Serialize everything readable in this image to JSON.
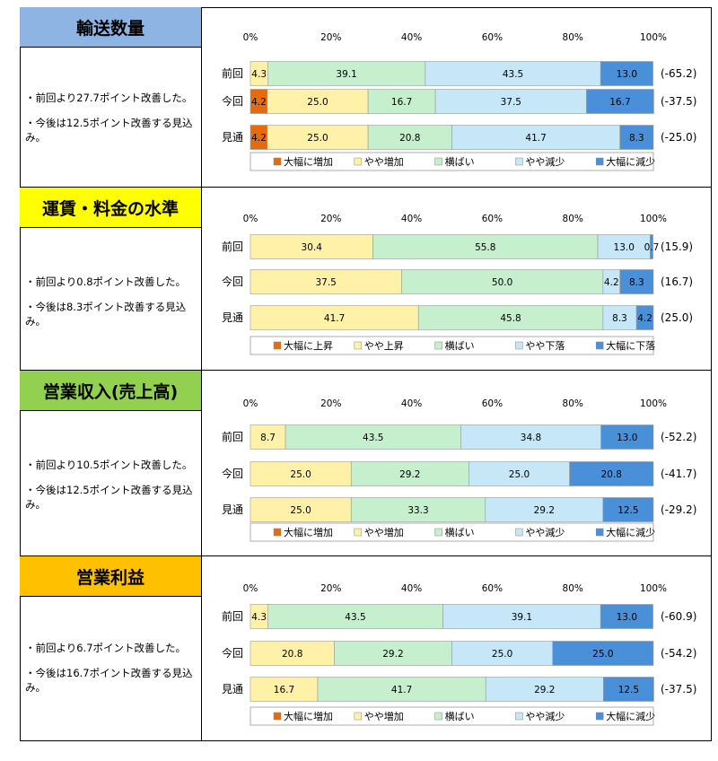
{
  "sections": [
    {
      "title": "輸送数量",
      "title_bg": "#8EB4E3",
      "notes": [
        "・前回より27.7ポイント改善した。",
        "・今後は12.5ポイント改善する見込み。"
      ]
    },
    {
      "title": "運賃・料金の水準",
      "title_bg": "#FFFF00",
      "notes": [
        "・前回より0.8ポイント改善した。",
        "・今後は8.3ポイント改善する見込み。"
      ]
    },
    {
      "title": "営業収入(売上高)",
      "title_bg": "#92D050",
      "notes": [
        "・前回より10.5ポイント改善した。",
        "・今後は12.5ポイント改善する見込み。"
      ]
    },
    {
      "title": "営業利益",
      "title_bg": "#FFC000",
      "notes": [
        "・前回より6.7ポイント改善した。",
        "・今後は16.7ポイント改善する見込み。"
      ]
    }
  ],
  "chart_data": [
    {
      "type": "bar",
      "stacked": true,
      "orientation": "horizontal",
      "categories": [
        "前回",
        "今回",
        "見通"
      ],
      "xticks": [
        "0%",
        "20%",
        "40%",
        "60%",
        "80%",
        "100%"
      ],
      "xlim": [
        0,
        100
      ],
      "series": [
        {
          "name": "大幅に増加",
          "color": "#E46C0A",
          "values": [
            0,
            4.2,
            4.2
          ],
          "labels": [
            "",
            "4.2",
            "4.2"
          ]
        },
        {
          "name": "やや増加",
          "color": "#FFF2A8",
          "values": [
            4.3,
            25.0,
            25.0
          ],
          "labels": [
            "4.3",
            "25.0",
            "25.0"
          ]
        },
        {
          "name": "横ばい",
          "color": "#C6EFCE",
          "values": [
            39.1,
            16.7,
            20.8
          ],
          "labels": [
            "39.1",
            "16.7",
            "20.8"
          ]
        },
        {
          "name": "やや減少",
          "color": "#C5E7F7",
          "values": [
            43.5,
            37.5,
            41.7
          ],
          "labels": [
            "43.5",
            "37.5",
            "41.7"
          ]
        },
        {
          "name": "大幅に減少",
          "color": "#4A90D9",
          "values": [
            13.0,
            16.7,
            8.3
          ],
          "labels": [
            "13.0",
            "16.7",
            "8.3"
          ]
        }
      ],
      "di": [
        "(-65.2)",
        "(-37.5)",
        "(-25.0)"
      ]
    },
    {
      "type": "bar",
      "stacked": true,
      "orientation": "horizontal",
      "categories": [
        "前回",
        "今回",
        "見通"
      ],
      "xticks": [
        "0%",
        "20%",
        "40%",
        "60%",
        "80%",
        "100%"
      ],
      "xlim": [
        0,
        100
      ],
      "series": [
        {
          "name": "大幅に上昇",
          "color": "#E46C0A",
          "values": [
            0,
            0,
            0
          ],
          "labels": [
            "",
            "",
            ""
          ]
        },
        {
          "name": "やや上昇",
          "color": "#FFF2A8",
          "values": [
            30.4,
            37.5,
            41.7
          ],
          "labels": [
            "30.4",
            "37.5",
            "41.7"
          ]
        },
        {
          "name": "横ばい",
          "color": "#C6EFCE",
          "values": [
            55.8,
            50.0,
            45.8
          ],
          "labels": [
            "55.8",
            "50.0",
            "45.8"
          ]
        },
        {
          "name": "やや下落",
          "color": "#C5E7F7",
          "values": [
            13.0,
            4.2,
            8.3
          ],
          "labels": [
            "13.0",
            "4.2",
            "8.3"
          ]
        },
        {
          "name": "大幅に下落",
          "color": "#4A90D9",
          "values": [
            0.7,
            8.3,
            4.2
          ],
          "labels": [
            "0.7",
            "8.3",
            "4.2"
          ]
        }
      ],
      "di": [
        "(15.9)",
        "(16.7)",
        "(25.0)"
      ]
    },
    {
      "type": "bar",
      "stacked": true,
      "orientation": "horizontal",
      "categories": [
        "前回",
        "今回",
        "見通"
      ],
      "xticks": [
        "0%",
        "20%",
        "40%",
        "60%",
        "80%",
        "100%"
      ],
      "xlim": [
        0,
        100
      ],
      "series": [
        {
          "name": "大幅に増加",
          "color": "#E46C0A",
          "values": [
            0,
            0,
            0
          ],
          "labels": [
            "",
            "",
            ""
          ]
        },
        {
          "name": "やや増加",
          "color": "#FFF2A8",
          "values": [
            8.7,
            25.0,
            25.0
          ],
          "labels": [
            "8.7",
            "25.0",
            "25.0"
          ]
        },
        {
          "name": "横ばい",
          "color": "#C6EFCE",
          "values": [
            43.5,
            29.2,
            33.3
          ],
          "labels": [
            "43.5",
            "29.2",
            "33.3"
          ]
        },
        {
          "name": "やや減少",
          "color": "#C5E7F7",
          "values": [
            34.8,
            25.0,
            29.2
          ],
          "labels": [
            "34.8",
            "25.0",
            "29.2"
          ]
        },
        {
          "name": "大幅に減少",
          "color": "#4A90D9",
          "values": [
            13.0,
            20.8,
            12.5
          ],
          "labels": [
            "13.0",
            "20.8",
            "12.5"
          ]
        }
      ],
      "di": [
        "(-52.2)",
        "(-41.7)",
        "(-29.2)"
      ]
    },
    {
      "type": "bar",
      "stacked": true,
      "orientation": "horizontal",
      "categories": [
        "前回",
        "今回",
        "見通"
      ],
      "xticks": [
        "0%",
        "20%",
        "40%",
        "60%",
        "80%",
        "100%"
      ],
      "xlim": [
        0,
        100
      ],
      "series": [
        {
          "name": "大幅に増加",
          "color": "#E46C0A",
          "values": [
            0,
            0,
            0
          ],
          "labels": [
            "",
            "",
            ""
          ]
        },
        {
          "name": "やや増加",
          "color": "#FFF2A8",
          "values": [
            4.3,
            20.8,
            16.7
          ],
          "labels": [
            "4.3",
            "20.8",
            "16.7"
          ]
        },
        {
          "name": "横ばい",
          "color": "#C6EFCE",
          "values": [
            43.5,
            29.2,
            41.7
          ],
          "labels": [
            "43.5",
            "29.2",
            "41.7"
          ]
        },
        {
          "name": "やや減少",
          "color": "#C5E7F7",
          "values": [
            39.1,
            25.0,
            29.2
          ],
          "labels": [
            "39.1",
            "25.0",
            "29.2"
          ]
        },
        {
          "name": "大幅に減少",
          "color": "#4A90D9",
          "values": [
            13.0,
            25.0,
            12.5
          ],
          "labels": [
            "13.0",
            "25.0",
            "12.5"
          ]
        }
      ],
      "di": [
        "(-60.9)",
        "(-54.2)",
        "(-37.5)"
      ]
    }
  ]
}
